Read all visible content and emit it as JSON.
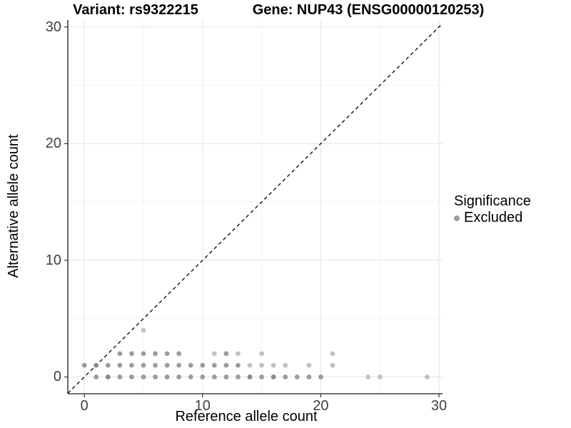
{
  "figure": {
    "title_left": "Variant: rs9322215",
    "title_right": "Gene: NUP43 (ENSG00000120253)"
  },
  "legend": {
    "title": "Significance",
    "items": [
      {
        "label": "Excluded",
        "color": "#9c9c9c"
      }
    ]
  },
  "colors": {
    "point_mid": "#9c9c9c",
    "point_light": "#c1c1c1",
    "point_dark": "#8a8a8a",
    "grid_major": "#e8e8e8",
    "grid_minor": "#f3f3f3",
    "axis_line": "#1a1a1a",
    "tick_mark": "#333333",
    "tick_text": "#404040",
    "identity_line": "#111111"
  },
  "chart_data": {
    "type": "scatter",
    "title": "Variant: rs9322215 — Gene: NUP43 (ENSG00000120253)",
    "xlabel": "Reference allele count",
    "ylabel": "Alternative allele count",
    "x_ticks": [
      0,
      10,
      20,
      30
    ],
    "y_ticks": [
      0,
      10,
      20,
      30
    ],
    "x_minor_gridlines": [
      5,
      15,
      25
    ],
    "y_minor_gridlines": [
      5,
      15,
      25
    ],
    "xlim": [
      -1.4,
      30.3
    ],
    "ylim": [
      -1.44,
      30.6
    ],
    "grid": true,
    "legend_position": "right",
    "identity_line": {
      "style": "dashed",
      "equation": "y = x"
    },
    "series": [
      {
        "name": "Excluded",
        "points": [
          [
            1,
            0
          ],
          [
            2,
            0,
            "d"
          ],
          [
            3,
            0
          ],
          [
            4,
            0
          ],
          [
            5,
            0
          ],
          [
            6,
            0
          ],
          [
            7,
            0
          ],
          [
            8,
            0
          ],
          [
            9,
            0
          ],
          [
            10,
            0
          ],
          [
            11,
            0
          ],
          [
            12,
            0
          ],
          [
            13,
            0
          ],
          [
            14,
            0,
            "d"
          ],
          [
            15,
            0
          ],
          [
            16,
            0,
            "d"
          ],
          [
            17,
            0
          ],
          [
            18,
            0
          ],
          [
            19,
            0
          ],
          [
            20,
            0
          ],
          [
            24,
            0,
            "l"
          ],
          [
            25,
            0,
            "l"
          ],
          [
            29,
            0,
            "l"
          ],
          [
            0,
            1
          ],
          [
            1,
            1,
            "d"
          ],
          [
            2,
            1
          ],
          [
            3,
            1
          ],
          [
            4,
            1
          ],
          [
            5,
            1
          ],
          [
            6,
            1
          ],
          [
            7,
            1
          ],
          [
            8,
            1
          ],
          [
            9,
            1
          ],
          [
            10,
            1
          ],
          [
            11,
            1
          ],
          [
            12,
            1
          ],
          [
            13,
            1
          ],
          [
            14,
            1,
            "l"
          ],
          [
            15,
            1,
            "l"
          ],
          [
            16,
            1,
            "l"
          ],
          [
            17,
            1,
            "l"
          ],
          [
            19,
            1,
            "l"
          ],
          [
            21,
            1,
            "l"
          ],
          [
            3,
            2
          ],
          [
            4,
            2
          ],
          [
            5,
            2
          ],
          [
            6,
            2
          ],
          [
            7,
            2
          ],
          [
            8,
            2
          ],
          [
            11,
            2,
            "l"
          ],
          [
            12,
            2
          ],
          [
            13,
            2,
            "l"
          ],
          [
            15,
            2,
            "l"
          ],
          [
            21,
            2,
            "l"
          ],
          [
            5,
            4,
            "l"
          ]
        ]
      }
    ]
  }
}
